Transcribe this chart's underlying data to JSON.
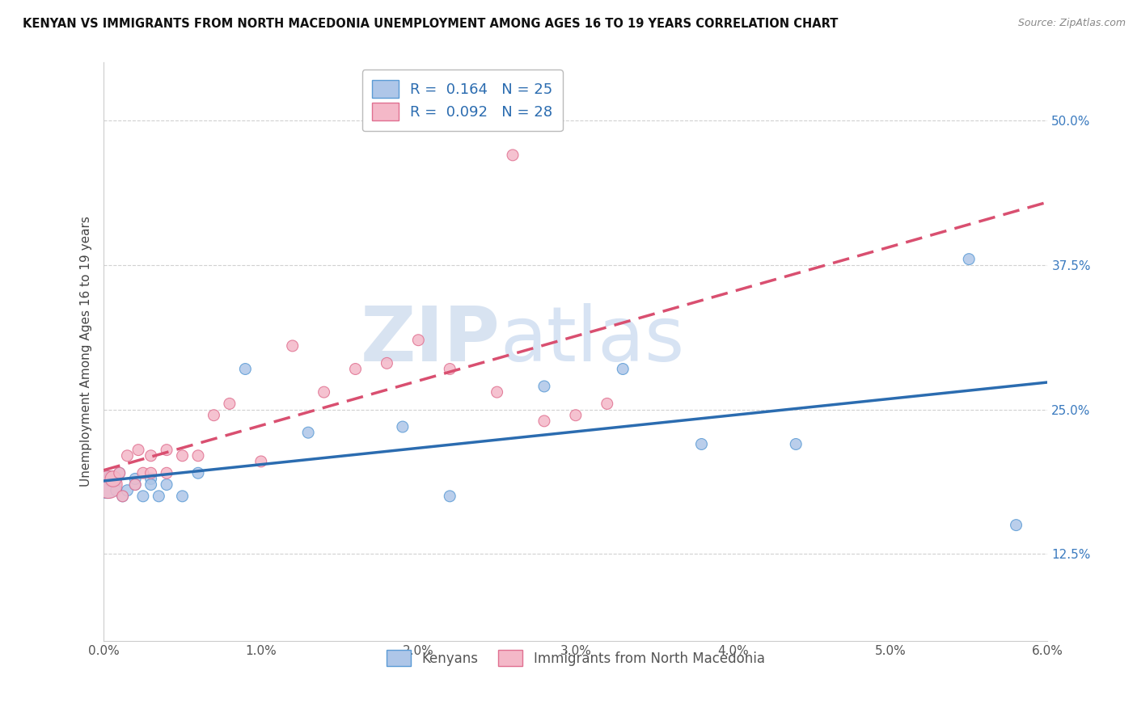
{
  "title": "KENYAN VS IMMIGRANTS FROM NORTH MACEDONIA UNEMPLOYMENT AMONG AGES 16 TO 19 YEARS CORRELATION CHART",
  "source": "Source: ZipAtlas.com",
  "ylabel": "Unemployment Among Ages 16 to 19 years",
  "xlim": [
    0.0,
    0.06
  ],
  "ylim": [
    0.05,
    0.55
  ],
  "xticks": [
    0.0,
    0.01,
    0.02,
    0.03,
    0.04,
    0.05,
    0.06
  ],
  "xticklabels": [
    "0.0%",
    "1.0%",
    "2.0%",
    "3.0%",
    "4.0%",
    "5.0%",
    "6.0%"
  ],
  "yticks": [
    0.125,
    0.25,
    0.375,
    0.5
  ],
  "yticklabels": [
    "12.5%",
    "25.0%",
    "37.5%",
    "50.0%"
  ],
  "blue_color": "#aec6e8",
  "pink_color": "#f4b8c8",
  "blue_edge_color": "#5b9bd5",
  "pink_edge_color": "#e07090",
  "blue_line_color": "#2b6cb0",
  "pink_line_color": "#d94f70",
  "blue_R": 0.164,
  "blue_N": 25,
  "pink_R": 0.092,
  "pink_N": 28,
  "watermark_zip": "ZIP",
  "watermark_atlas": "atlas",
  "legend1_label_blue": "R =  0.164   N = 25",
  "legend1_label_pink": "R =  0.092   N = 28",
  "legend2_label_blue": "Kenyans",
  "legend2_label_pink": "Immigrants from North Macedonia",
  "kenyans_x": [
    0.0002,
    0.0005,
    0.0008,
    0.001,
    0.0012,
    0.0015,
    0.002,
    0.002,
    0.0025,
    0.003,
    0.003,
    0.0035,
    0.004,
    0.005,
    0.006,
    0.009,
    0.013,
    0.019,
    0.022,
    0.028,
    0.033,
    0.038,
    0.044,
    0.055,
    0.058
  ],
  "kenyans_y": [
    0.185,
    0.19,
    0.18,
    0.195,
    0.175,
    0.18,
    0.185,
    0.19,
    0.175,
    0.19,
    0.185,
    0.175,
    0.185,
    0.175,
    0.195,
    0.285,
    0.23,
    0.235,
    0.175,
    0.27,
    0.285,
    0.22,
    0.22,
    0.38,
    0.15
  ],
  "kenyans_sizes": [
    600,
    200,
    100,
    100,
    100,
    100,
    100,
    100,
    100,
    100,
    100,
    100,
    100,
    100,
    100,
    100,
    100,
    100,
    100,
    100,
    100,
    100,
    100,
    100,
    100
  ],
  "macedonia_x": [
    0.0003,
    0.0006,
    0.001,
    0.0012,
    0.0015,
    0.002,
    0.0022,
    0.0025,
    0.003,
    0.003,
    0.004,
    0.004,
    0.005,
    0.006,
    0.007,
    0.008,
    0.01,
    0.012,
    0.014,
    0.016,
    0.018,
    0.02,
    0.022,
    0.025,
    0.026,
    0.028,
    0.03,
    0.032
  ],
  "macedonia_y": [
    0.185,
    0.19,
    0.195,
    0.175,
    0.21,
    0.185,
    0.215,
    0.195,
    0.21,
    0.195,
    0.215,
    0.195,
    0.21,
    0.21,
    0.245,
    0.255,
    0.205,
    0.305,
    0.265,
    0.285,
    0.29,
    0.31,
    0.285,
    0.265,
    0.47,
    0.24,
    0.245,
    0.255
  ],
  "macedonia_sizes": [
    600,
    200,
    100,
    100,
    100,
    100,
    100,
    100,
    100,
    100,
    100,
    100,
    100,
    100,
    100,
    100,
    100,
    100,
    100,
    100,
    100,
    100,
    100,
    100,
    100,
    100,
    100,
    100
  ]
}
